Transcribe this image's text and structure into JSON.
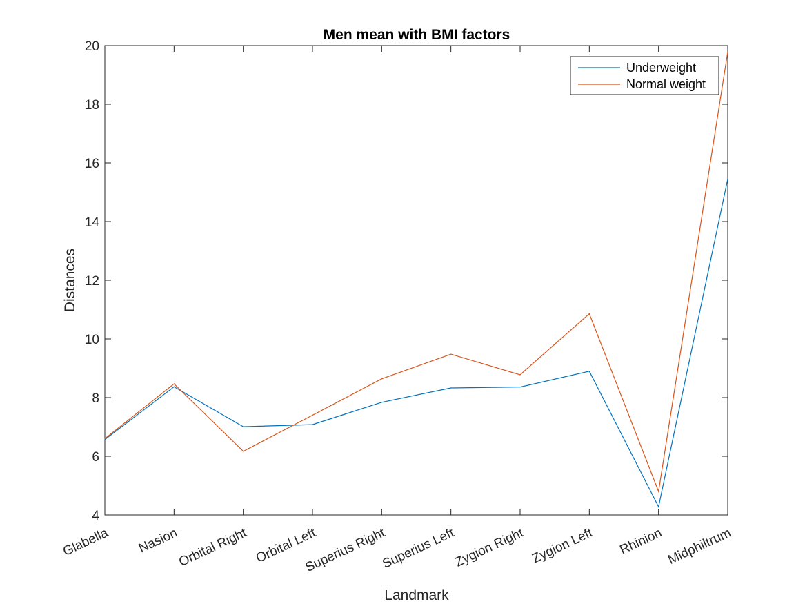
{
  "chart_data": {
    "type": "line",
    "title": "Men mean with BMI factors",
    "xlabel": "Landmark",
    "ylabel": "Distances",
    "ylim": [
      4,
      20
    ],
    "yticks": [
      4,
      6,
      8,
      10,
      12,
      14,
      16,
      18,
      20
    ],
    "grid": false,
    "legend_position": "top-right",
    "categories": [
      "Glabella",
      "Nasion",
      "Orbital Right",
      "Orbital Left",
      "Superius Right",
      "Superius Left",
      "Zygion Right",
      "Zygion Left",
      "Rhinion",
      "Midphiltrum"
    ],
    "series": [
      {
        "name": "Underweight",
        "color": "#0072BD",
        "values": [
          6.57,
          8.37,
          7.01,
          7.08,
          7.84,
          8.33,
          8.36,
          8.9,
          4.28,
          15.45
        ]
      },
      {
        "name": "Normal weight",
        "color": "#D95319",
        "values": [
          6.6,
          8.47,
          6.17,
          7.4,
          8.64,
          9.48,
          8.78,
          10.86,
          4.8,
          19.78
        ]
      }
    ]
  }
}
